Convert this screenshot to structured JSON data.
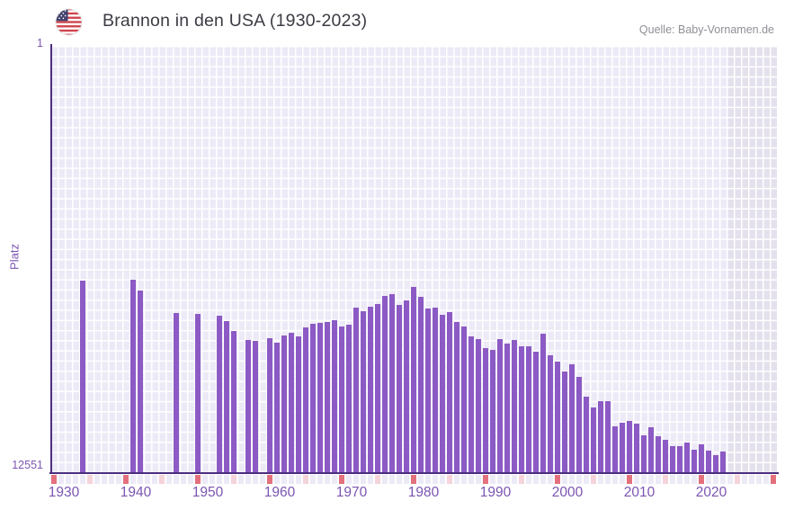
{
  "header": {
    "title": "Brannon in den USA (1930-2023)",
    "source": "Quelle: Baby-Vornamen.de"
  },
  "axes": {
    "y_label": "Platz",
    "y_top_tick": "1",
    "y_bottom_tick": "12551",
    "x_ticks": [
      "1930",
      "1940",
      "1950",
      "1960",
      "1970",
      "1980",
      "1990",
      "2000",
      "2010",
      "2020"
    ],
    "x_domain_start": 1930,
    "x_domain_end": 2030,
    "shade_from_year": 2024,
    "y_scale": "log",
    "y_inverted": true
  },
  "colors": {
    "bar": "#8c5ac4",
    "axis": "#4b2d7f",
    "tick_text": "#7b55b2",
    "grid_cell": "#edeaf7",
    "grid_line": "#ffffff",
    "future_cell": "#e4e1ed",
    "ribbon_decade": "#e4707e",
    "ribbon_half_decade": "#f5d3db",
    "ribbon_default": "#edeaf7",
    "title_text": "#3b3b44",
    "source_text": "#8f8f97"
  },
  "chart_data": {
    "type": "bar",
    "title": "Brannon in den USA (1930-2023)",
    "xlabel": "",
    "ylabel": "Platz",
    "legend": null,
    "grid": true,
    "y_axis": {
      "top": 1,
      "bottom": 12551,
      "scale": "log",
      "inverted": true
    },
    "x_domain": [
      1930,
      2030
    ],
    "years": [
      1934,
      1941,
      1942,
      1947,
      1950,
      1953,
      1954,
      1955,
      1957,
      1958,
      1960,
      1961,
      1962,
      1963,
      1964,
      1965,
      1966,
      1967,
      1968,
      1969,
      1970,
      1971,
      1972,
      1973,
      1974,
      1975,
      1976,
      1977,
      1978,
      1979,
      1980,
      1981,
      1982,
      1983,
      1984,
      1985,
      1986,
      1987,
      1988,
      1989,
      1990,
      1991,
      1992,
      1993,
      1994,
      1995,
      1996,
      1997,
      1998,
      1999,
      2000,
      2001,
      2002,
      2003,
      2004,
      2005,
      2006,
      2007,
      2008,
      2009,
      2010,
      2011,
      2012,
      2013,
      2014,
      2015,
      2016,
      2017,
      2018,
      2019,
      2020,
      2021,
      2022,
      2023
    ],
    "ranks": [
      181,
      177,
      227,
      371,
      378,
      393,
      440,
      547,
      667,
      690,
      646,
      713,
      613,
      569,
      625,
      512,
      473,
      457,
      448,
      434,
      495,
      480,
      329,
      356,
      322,
      301,
      252,
      245,
      307,
      278,
      209,
      261,
      333,
      326,
      388,
      363,
      448,
      495,
      625,
      654,
      809,
      830,
      659,
      722,
      667,
      773,
      767,
      876,
      585,
      948,
      1083,
      1337,
      1156,
      1527,
      2365,
      3001,
      2596,
      2627,
      4556,
      4183,
      4068,
      4267,
      5563,
      4648,
      5675,
      6144,
      7019,
      7103,
      6560,
      7598,
      6786,
      7797,
      8611,
      7952
    ]
  }
}
